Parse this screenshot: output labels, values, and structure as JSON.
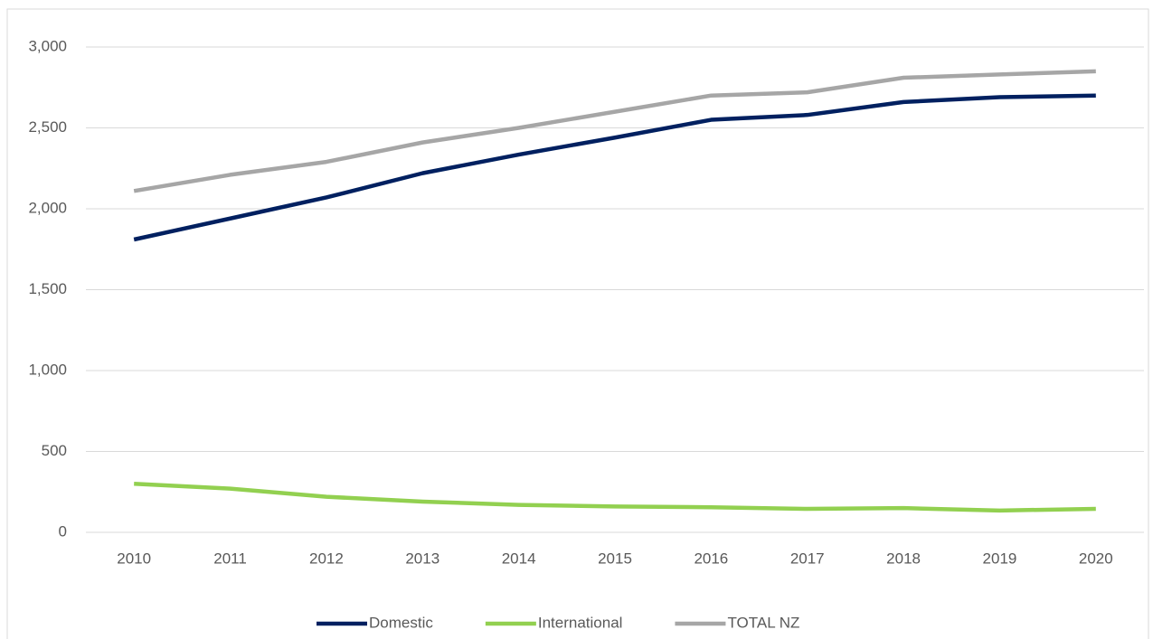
{
  "chart_data": {
    "type": "line",
    "categories": [
      "2010",
      "2011",
      "2012",
      "2013",
      "2014",
      "2015",
      "2016",
      "2017",
      "2018",
      "2019",
      "2020"
    ],
    "series": [
      {
        "name": "Domestic",
        "color": "#002060",
        "values": [
          1810,
          1940,
          2070,
          2220,
          2335,
          2440,
          2550,
          2580,
          2660,
          2690,
          2700
        ]
      },
      {
        "name": "International",
        "color": "#92d050",
        "values": [
          300,
          270,
          220,
          190,
          170,
          160,
          155,
          145,
          150,
          135,
          145
        ]
      },
      {
        "name": "TOTAL NZ",
        "color": "#a6a6a6",
        "values": [
          2110,
          2210,
          2290,
          2410,
          2500,
          2600,
          2700,
          2720,
          2810,
          2830,
          2850
        ]
      }
    ],
    "ylim": [
      0,
      3000
    ],
    "yticks": [
      0,
      500,
      {
        "value": 1000,
        "label": "1,000"
      },
      {
        "value": 1500,
        "label": "1,500"
      },
      {
        "value": 2000,
        "label": "2,000"
      },
      {
        "value": 2500,
        "label": "2,500"
      },
      {
        "value": 3000,
        "label": "3,000"
      }
    ],
    "grid": true,
    "legend": "bottom"
  }
}
